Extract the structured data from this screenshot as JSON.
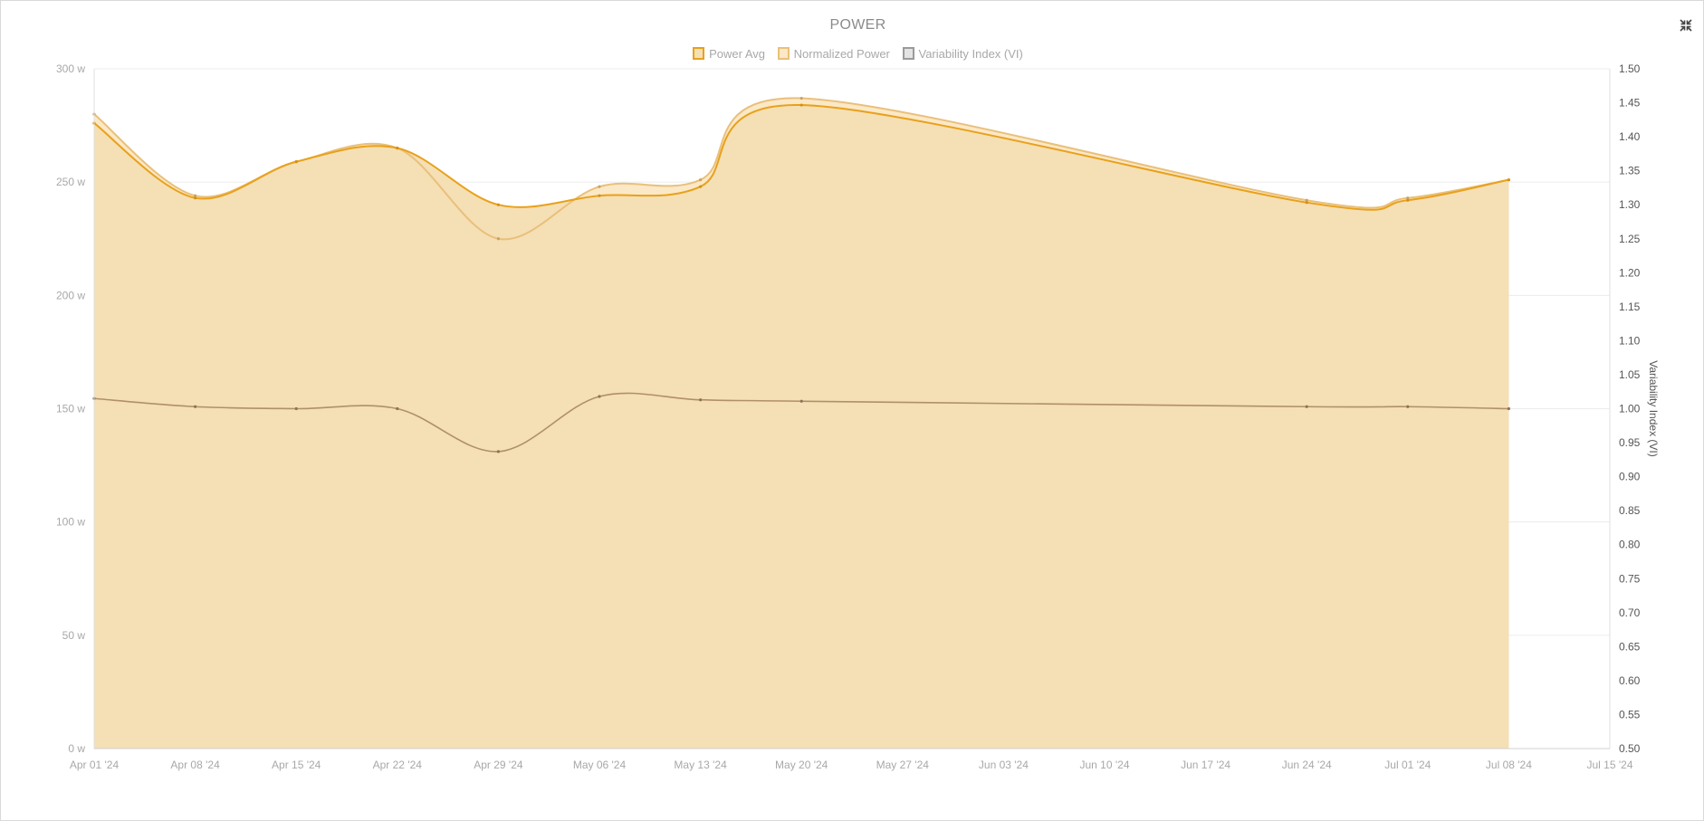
{
  "colors": {
    "power_avg": "#e8a11a",
    "normalized_power": "#e9c07a",
    "variability_index": "#b0a28d",
    "area_fill": "#f5dfb5",
    "np_band_fill": "#fbe8c6",
    "vi_line": "#b09068",
    "grid": "#ececec"
  },
  "toolbar": {
    "collapse_icon": "collapse-arrows-icon"
  },
  "chart_data": {
    "type": "area",
    "title": "POWER",
    "legend": {
      "placement": "top-center",
      "items": [
        "Power Avg",
        "Normalized Power",
        "Variability Index (VI)"
      ]
    },
    "x": [
      "Apr 01 '24",
      "Apr 08 '24",
      "Apr 15 '24",
      "Apr 22 '24",
      "Apr 29 '24",
      "May 06 '24",
      "May 13 '24",
      "May 20 '24",
      "Jun 24 '24",
      "Jul 01 '24",
      "Jul 08 '24"
    ],
    "x_ticks": [
      "Apr 01 '24",
      "Apr 08 '24",
      "Apr 15 '24",
      "Apr 22 '24",
      "Apr 29 '24",
      "May 06 '24",
      "May 13 '24",
      "May 20 '24",
      "May 27 '24",
      "Jun 03 '24",
      "Jun 10 '24",
      "Jun 17 '24",
      "Jun 24 '24",
      "Jul 01 '24",
      "Jul 08 '24",
      "Jul 15 '24"
    ],
    "y_left": {
      "ticks": [
        "0 w",
        "50 w",
        "100 w",
        "150 w",
        "200 w",
        "250 w",
        "300 w"
      ],
      "ylim": [
        0,
        300
      ]
    },
    "y_right": {
      "label": "Variability Index (VI)",
      "ticks": [
        "0.50",
        "0.55",
        "0.60",
        "0.65",
        "0.70",
        "0.75",
        "0.80",
        "0.85",
        "0.90",
        "0.95",
        "1.00",
        "1.05",
        "1.10",
        "1.15",
        "1.20",
        "1.25",
        "1.30",
        "1.35",
        "1.40",
        "1.45",
        "1.50"
      ],
      "ylim": [
        0.5,
        1.5
      ]
    },
    "series": [
      {
        "name": "Power Avg",
        "axis": "left",
        "values": [
          276,
          243,
          259,
          265,
          240,
          244,
          248,
          284,
          241,
          242,
          251
        ]
      },
      {
        "name": "Normalized Power",
        "axis": "left",
        "values": [
          280,
          244,
          259,
          265,
          225,
          248,
          251,
          287,
          242,
          243,
          251
        ]
      },
      {
        "name": "Variability Index (VI)",
        "axis": "right",
        "values": [
          1.015,
          1.003,
          1.0,
          1.0,
          0.937,
          1.018,
          1.013,
          1.011,
          1.003,
          1.003,
          1.0
        ]
      }
    ],
    "grid": true
  }
}
